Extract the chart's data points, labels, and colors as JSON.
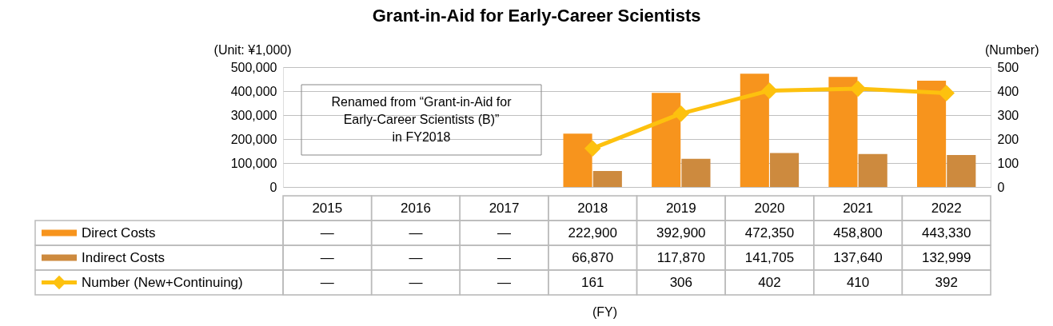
{
  "chart_data": {
    "type": "bar",
    "title": "Grant-in-Aid for Early-Career Scientists",
    "categories": [
      "2015",
      "2016",
      "2017",
      "2018",
      "2019",
      "2020",
      "2021",
      "2022"
    ],
    "series": [
      {
        "name": "Direct Costs",
        "type": "bar",
        "color": "#f7941d",
        "values": [
          null,
          null,
          null,
          222900,
          392900,
          472350,
          458800,
          443330
        ],
        "value_labels": [
          "—",
          "—",
          "—",
          "222,900",
          "392,900",
          "472,350",
          "458,800",
          "443,330"
        ]
      },
      {
        "name": "Indirect Costs",
        "type": "bar",
        "color": "#cd8a3e",
        "values": [
          null,
          null,
          null,
          66870,
          117870,
          141705,
          137640,
          132999
        ],
        "value_labels": [
          "—",
          "—",
          "—",
          "66,870",
          "117,870",
          "141,705",
          "137,640",
          "132,999"
        ]
      },
      {
        "name": "Number (New+Continuing)",
        "type": "line",
        "axis": "y2",
        "color": "#fdc10e",
        "marker": "diamond",
        "values": [
          null,
          null,
          null,
          161,
          306,
          402,
          410,
          392
        ],
        "value_labels": [
          "—",
          "—",
          "—",
          "161",
          "306",
          "402",
          "410",
          "392"
        ]
      }
    ],
    "ylabel": "(Unit: ¥1,000)",
    "y2label": "(Number)",
    "ylim": [
      0,
      500000
    ],
    "yticks": [
      0,
      {
        "value": 100000,
        "label": "100,000"
      },
      {
        "value": 200000,
        "label": "200,000"
      },
      {
        "value": 300000,
        "label": "300,000"
      },
      {
        "value": 400000,
        "label": "400,000"
      },
      {
        "value": 500000,
        "label": "500,000"
      }
    ],
    "y2lim": [
      0,
      500
    ],
    "y2ticks": [
      0,
      100,
      200,
      300,
      400,
      500
    ],
    "grid": "y",
    "legend": "bottom left",
    "annotations": [
      "Renamed from “Grant-in-Aid for Early-Career Scientists (B)” in FY2018",
      "(FY)"
    ]
  }
}
